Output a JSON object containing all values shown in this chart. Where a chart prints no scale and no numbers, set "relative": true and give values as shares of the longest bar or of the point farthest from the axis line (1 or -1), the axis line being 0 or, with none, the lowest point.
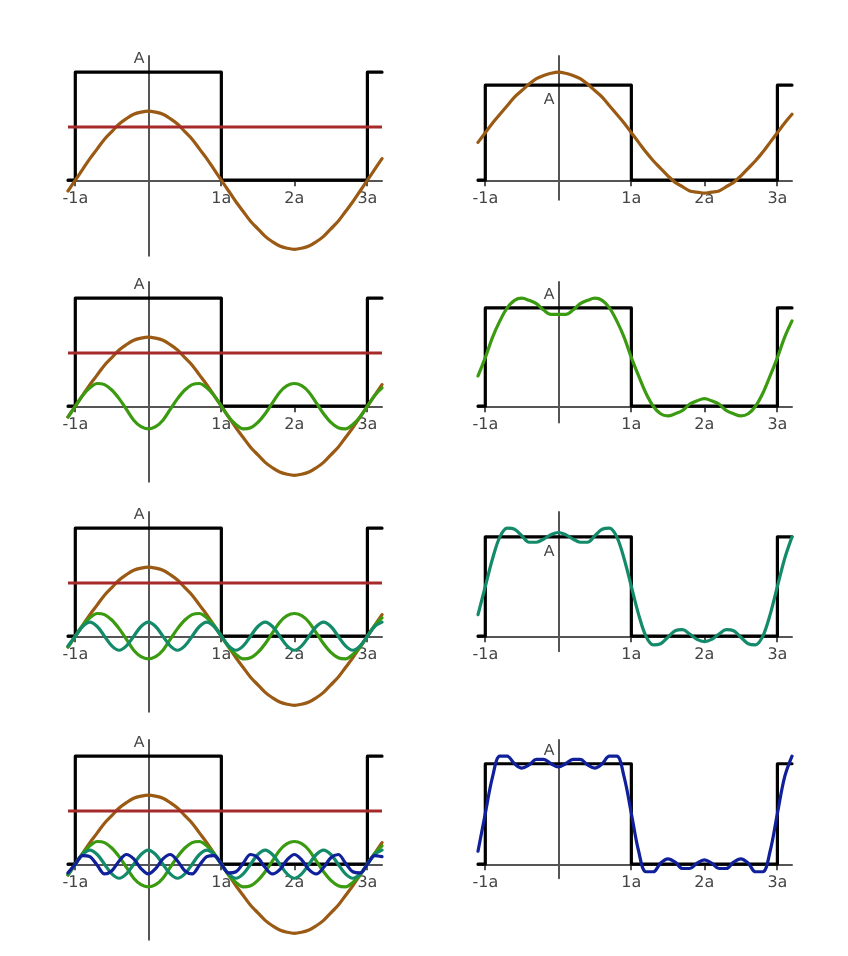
{
  "chart_data": [
    {
      "type": "line",
      "relative": true,
      "x": [
        -1.1,
        -1,
        -0.9,
        -0.8,
        -0.7,
        -0.6,
        -0.5,
        -0.4,
        -0.3,
        -0.2,
        -0.1,
        0,
        0.1,
        0.2,
        0.3,
        0.4,
        0.5,
        0.6,
        0.7,
        0.8,
        0.9,
        1,
        1.1,
        1.2,
        1.3,
        1.4,
        1.5,
        1.6,
        1.7,
        1.8,
        1.9,
        2,
        2.1,
        2.2,
        2.3,
        2.4,
        2.5,
        2.6,
        2.7,
        2.8,
        2.9,
        3,
        3.1,
        3.2
      ],
      "xlim": [
        -1.1,
        3.2
      ],
      "xticks": [
        {
          "value": -1,
          "label": "-1a"
        },
        {
          "value": 1,
          "label": "1a"
        },
        {
          "value": 2,
          "label": "2a"
        },
        {
          "value": 3,
          "label": "3a"
        }
      ],
      "annotations": [
        {
          "text": "A",
          "y": 1
        }
      ],
      "grid": false,
      "marker": "none",
      "line_style": "solid",
      "ref_lines": [
        {
          "axis": "y",
          "value": 0.5,
          "color": "#a52a2a"
        }
      ],
      "series": [
        {
          "color": "#000000",
          "x": [
            -1.1,
            -1,
            -1,
            1,
            1,
            3,
            3,
            3.2
          ],
          "values": [
            0,
            0,
            1,
            1,
            0,
            0,
            1,
            1
          ]
        },
        {
          "color": "#9a5a14",
          "values": [
            -0.1,
            0,
            0.1,
            0.2,
            0.29,
            0.38,
            0.45,
            0.52,
            0.57,
            0.61,
            0.63,
            0.64,
            0.63,
            0.61,
            0.57,
            0.52,
            0.45,
            0.38,
            0.29,
            0.2,
            0.1,
            0,
            -0.1,
            -0.2,
            -0.29,
            -0.38,
            -0.45,
            -0.52,
            -0.57,
            -0.61,
            -0.63,
            -0.64,
            -0.63,
            -0.61,
            -0.57,
            -0.52,
            -0.45,
            -0.38,
            -0.29,
            -0.2,
            -0.1,
            0,
            0.1,
            0.2
          ]
        }
      ]
    },
    {
      "type": "line",
      "relative": true,
      "x": [
        -1.1,
        -1,
        -0.9,
        -0.8,
        -0.7,
        -0.6,
        -0.5,
        -0.4,
        -0.3,
        -0.2,
        -0.1,
        0,
        0.1,
        0.2,
        0.3,
        0.4,
        0.5,
        0.6,
        0.7,
        0.8,
        0.9,
        1,
        1.1,
        1.2,
        1.3,
        1.4,
        1.5,
        1.6,
        1.7,
        1.8,
        1.9,
        2,
        2.1,
        2.2,
        2.3,
        2.4,
        2.5,
        2.6,
        2.7,
        2.8,
        2.9,
        3,
        3.1,
        3.2
      ],
      "xlim": [
        -1.1,
        3.2
      ],
      "xticks": [
        {
          "value": -1,
          "label": "-1a"
        },
        {
          "value": 1,
          "label": "1a"
        },
        {
          "value": 2,
          "label": "2a"
        },
        {
          "value": 3,
          "label": "3a"
        }
      ],
      "annotations": [
        {
          "text": "A",
          "y": 0.88
        }
      ],
      "grid": false,
      "marker": "none",
      "line_style": "solid",
      "series": [
        {
          "color": "#000000",
          "x": [
            -1.1,
            -1,
            -1,
            1,
            1,
            3,
            3,
            3.2
          ],
          "values": [
            0,
            0,
            0.88,
            0.88,
            0,
            0,
            0.88,
            0.88
          ]
        },
        {
          "color": "#9a5a14",
          "values": [
            0.35,
            0.44,
            0.53,
            0.61,
            0.69,
            0.77,
            0.83,
            0.89,
            0.94,
            0.97,
            0.99,
            1,
            0.99,
            0.97,
            0.94,
            0.89,
            0.83,
            0.77,
            0.69,
            0.61,
            0.53,
            0.44,
            0.35,
            0.26,
            0.18,
            0.11,
            0.04,
            -0.02,
            -0.06,
            -0.1,
            -0.11,
            -0.12,
            -0.11,
            -0.1,
            -0.06,
            -0.02,
            0.04,
            0.11,
            0.18,
            0.26,
            0.35,
            0.44,
            0.53,
            0.61
          ]
        }
      ]
    },
    {
      "type": "line",
      "relative": true,
      "x": [
        -1.1,
        -1,
        -0.9,
        -0.8,
        -0.7,
        -0.6,
        -0.5,
        -0.4,
        -0.3,
        -0.2,
        -0.1,
        0,
        0.1,
        0.2,
        0.3,
        0.4,
        0.5,
        0.6,
        0.7,
        0.8,
        0.9,
        1,
        1.1,
        1.2,
        1.3,
        1.4,
        1.5,
        1.6,
        1.7,
        1.8,
        1.9,
        2,
        2.1,
        2.2,
        2.3,
        2.4,
        2.5,
        2.6,
        2.7,
        2.8,
        2.9,
        3,
        3.1,
        3.2
      ],
      "xlim": [
        -1.1,
        3.2
      ],
      "xticks": [
        {
          "value": -1,
          "label": "-1a"
        },
        {
          "value": 1,
          "label": "1a"
        },
        {
          "value": 2,
          "label": "2a"
        },
        {
          "value": 3,
          "label": "3a"
        }
      ],
      "annotations": [
        {
          "text": "A",
          "y": 1
        }
      ],
      "grid": false,
      "marker": "none",
      "line_style": "solid",
      "ref_lines": [
        {
          "axis": "y",
          "value": 0.5,
          "color": "#a52a2a"
        }
      ],
      "series": [
        {
          "color": "#000000",
          "x": [
            -1.1,
            -1,
            -1,
            1,
            1,
            3,
            3,
            3.2
          ],
          "values": [
            0,
            0,
            1,
            1,
            0,
            0,
            1,
            1
          ]
        },
        {
          "color": "#9a5a14",
          "values": [
            -0.1,
            0,
            0.1,
            0.2,
            0.29,
            0.38,
            0.45,
            0.52,
            0.57,
            0.61,
            0.63,
            0.64,
            0.63,
            0.61,
            0.57,
            0.52,
            0.45,
            0.38,
            0.29,
            0.2,
            0.1,
            0,
            -0.1,
            -0.2,
            -0.29,
            -0.38,
            -0.45,
            -0.52,
            -0.57,
            -0.61,
            -0.63,
            -0.64,
            -0.63,
            -0.61,
            -0.57,
            -0.52,
            -0.45,
            -0.38,
            -0.29,
            -0.2,
            -0.1,
            0,
            0.1,
            0.2
          ]
        },
        {
          "color": "#3a9a10",
          "values": [
            -0.1,
            0,
            0.1,
            0.17,
            0.21,
            0.2,
            0.15,
            0.07,
            -0.03,
            -0.13,
            -0.19,
            -0.21,
            -0.19,
            -0.13,
            -0.03,
            0.07,
            0.15,
            0.2,
            0.21,
            0.17,
            0.1,
            0,
            -0.1,
            -0.17,
            -0.21,
            -0.2,
            -0.15,
            -0.07,
            0.03,
            0.13,
            0.19,
            0.21,
            0.19,
            0.13,
            0.03,
            -0.07,
            -0.15,
            -0.2,
            -0.21,
            -0.17,
            -0.1,
            0,
            0.1,
            0.17
          ]
        }
      ]
    },
    {
      "type": "line",
      "relative": true,
      "x": [
        -1.1,
        -1,
        -0.9,
        -0.8,
        -0.7,
        -0.6,
        -0.5,
        -0.4,
        -0.3,
        -0.2,
        -0.1,
        0,
        0.1,
        0.2,
        0.3,
        0.4,
        0.5,
        0.6,
        0.7,
        0.8,
        0.9,
        1,
        1.1,
        1.2,
        1.3,
        1.4,
        1.5,
        1.6,
        1.7,
        1.8,
        1.9,
        2,
        2.1,
        2.2,
        2.3,
        2.4,
        2.5,
        2.6,
        2.7,
        2.8,
        2.9,
        3,
        3.1,
        3.2
      ],
      "xlim": [
        -1.1,
        3.2
      ],
      "xticks": [
        {
          "value": -1,
          "label": "-1a"
        },
        {
          "value": 1,
          "label": "1a"
        },
        {
          "value": 2,
          "label": "2a"
        },
        {
          "value": 3,
          "label": "3a"
        }
      ],
      "annotations": [
        {
          "text": "A",
          "y": 0.91
        }
      ],
      "grid": false,
      "marker": "none",
      "line_style": "solid",
      "series": [
        {
          "color": "#000000",
          "x": [
            -1.1,
            -1,
            -1,
            1,
            1,
            3,
            3,
            3.2
          ],
          "values": [
            0,
            0,
            0.91,
            0.91,
            0,
            0,
            0.91,
            0.91
          ]
        },
        {
          "color": "#3a9a10",
          "values": [
            0.28,
            0.45,
            0.64,
            0.79,
            0.91,
            0.98,
            1,
            0.98,
            0.95,
            0.89,
            0.85,
            0.85,
            0.85,
            0.89,
            0.95,
            0.98,
            1,
            0.98,
            0.91,
            0.79,
            0.64,
            0.45,
            0.28,
            0.12,
            0,
            -0.07,
            -0.09,
            -0.07,
            -0.04,
            0.02,
            0.05,
            0.07,
            0.05,
            0.02,
            -0.04,
            -0.07,
            -0.09,
            -0.07,
            0,
            0.12,
            0.28,
            0.45,
            0.64,
            0.79
          ]
        }
      ]
    },
    {
      "type": "line",
      "relative": true,
      "x": [
        -1.1,
        -1,
        -0.9,
        -0.8,
        -0.7,
        -0.6,
        -0.5,
        -0.4,
        -0.3,
        -0.2,
        -0.1,
        0,
        0.1,
        0.2,
        0.3,
        0.4,
        0.5,
        0.6,
        0.7,
        0.8,
        0.9,
        1,
        1.1,
        1.2,
        1.3,
        1.4,
        1.5,
        1.6,
        1.7,
        1.8,
        1.9,
        2,
        2.1,
        2.2,
        2.3,
        2.4,
        2.5,
        2.6,
        2.7,
        2.8,
        2.9,
        3,
        3.1,
        3.2
      ],
      "xlim": [
        -1.1,
        3.2
      ],
      "xticks": [
        {
          "value": -1,
          "label": "-1a"
        },
        {
          "value": 1,
          "label": "1a"
        },
        {
          "value": 2,
          "label": "2a"
        },
        {
          "value": 3,
          "label": "3a"
        }
      ],
      "annotations": [
        {
          "text": "A",
          "y": 1
        }
      ],
      "grid": false,
      "marker": "none",
      "line_style": "solid",
      "ref_lines": [
        {
          "axis": "y",
          "value": 0.5,
          "color": "#a52a2a"
        }
      ],
      "series": [
        {
          "color": "#000000",
          "x": [
            -1.1,
            -1,
            -1,
            1,
            1,
            3,
            3,
            3.2
          ],
          "values": [
            0,
            0,
            1,
            1,
            0,
            0,
            1,
            1
          ]
        },
        {
          "color": "#9a5a14",
          "values": [
            -0.1,
            0,
            0.1,
            0.2,
            0.29,
            0.38,
            0.45,
            0.52,
            0.57,
            0.61,
            0.63,
            0.64,
            0.63,
            0.61,
            0.57,
            0.52,
            0.45,
            0.38,
            0.29,
            0.2,
            0.1,
            0,
            -0.1,
            -0.2,
            -0.29,
            -0.38,
            -0.45,
            -0.52,
            -0.57,
            -0.61,
            -0.63,
            -0.64,
            -0.63,
            -0.61,
            -0.57,
            -0.52,
            -0.45,
            -0.38,
            -0.29,
            -0.2,
            -0.1,
            0,
            0.1,
            0.2
          ]
        },
        {
          "color": "#3a9a10",
          "values": [
            -0.1,
            0,
            0.1,
            0.17,
            0.21,
            0.2,
            0.15,
            0.07,
            -0.03,
            -0.13,
            -0.19,
            -0.21,
            -0.19,
            -0.13,
            -0.03,
            0.07,
            0.15,
            0.2,
            0.21,
            0.17,
            0.1,
            0,
            -0.1,
            -0.17,
            -0.21,
            -0.2,
            -0.15,
            -0.07,
            0.03,
            0.13,
            0.19,
            0.21,
            0.19,
            0.13,
            0.03,
            -0.07,
            -0.15,
            -0.2,
            -0.21,
            -0.17,
            -0.1,
            0,
            0.1,
            0.17
          ]
        },
        {
          "color": "#138a6a",
          "values": [
            -0.09,
            0,
            0.09,
            0.13,
            0.09,
            0,
            -0.09,
            -0.13,
            -0.09,
            0,
            0.09,
            0.13,
            0.09,
            0,
            -0.09,
            -0.13,
            -0.09,
            0,
            0.09,
            0.13,
            0.09,
            0,
            -0.09,
            -0.13,
            -0.09,
            0,
            0.09,
            0.13,
            0.09,
            0,
            -0.09,
            -0.13,
            -0.09,
            0,
            0.09,
            0.13,
            0.09,
            0,
            -0.09,
            -0.13,
            -0.09,
            0,
            0.09,
            0.13
          ]
        }
      ]
    },
    {
      "type": "line",
      "relative": true,
      "x": [
        -1.1,
        -1,
        -0.9,
        -0.8,
        -0.7,
        -0.6,
        -0.5,
        -0.4,
        -0.3,
        -0.2,
        -0.1,
        0,
        0.1,
        0.2,
        0.3,
        0.4,
        0.5,
        0.6,
        0.7,
        0.8,
        0.9,
        1,
        1.1,
        1.2,
        1.3,
        1.4,
        1.5,
        1.6,
        1.7,
        1.8,
        1.9,
        2,
        2.1,
        2.2,
        2.3,
        2.4,
        2.5,
        2.6,
        2.7,
        2.8,
        2.9,
        3,
        3.1,
        3.2
      ],
      "xlim": [
        -1.1,
        3.2
      ],
      "xticks": [
        {
          "value": -1,
          "label": "-1a"
        },
        {
          "value": 1,
          "label": "1a"
        },
        {
          "value": 2,
          "label": "2a"
        },
        {
          "value": 3,
          "label": "3a"
        }
      ],
      "annotations": [
        {
          "text": "A",
          "y": 0.92
        }
      ],
      "grid": false,
      "marker": "none",
      "line_style": "solid",
      "series": [
        {
          "color": "#000000",
          "x": [
            -1.1,
            -1,
            -1,
            1,
            1,
            3,
            3,
            3.2
          ],
          "values": [
            0,
            0,
            0.92,
            0.92,
            0,
            0,
            0.92,
            0.92
          ]
        },
        {
          "color": "#138a6a",
          "values": [
            0.2,
            0.46,
            0.72,
            0.92,
            1,
            0.99,
            0.93,
            0.87,
            0.87,
            0.9,
            0.94,
            0.96,
            0.94,
            0.9,
            0.87,
            0.87,
            0.93,
            0.99,
            1,
            0.92,
            0.72,
            0.46,
            0.2,
            0,
            -0.08,
            -0.07,
            -0.01,
            0.05,
            0.06,
            0.02,
            -0.03,
            -0.05,
            -0.03,
            0.02,
            0.06,
            0.05,
            -0.01,
            -0.07,
            -0.08,
            0,
            0.2,
            0.46,
            0.72,
            0.92
          ]
        }
      ]
    },
    {
      "type": "line",
      "relative": true,
      "x": [
        -1.1,
        -1,
        -0.9,
        -0.8,
        -0.7,
        -0.6,
        -0.5,
        -0.4,
        -0.3,
        -0.2,
        -0.1,
        0,
        0.1,
        0.2,
        0.3,
        0.4,
        0.5,
        0.6,
        0.7,
        0.8,
        0.9,
        1,
        1.1,
        1.2,
        1.3,
        1.4,
        1.5,
        1.6,
        1.7,
        1.8,
        1.9,
        2,
        2.1,
        2.2,
        2.3,
        2.4,
        2.5,
        2.6,
        2.7,
        2.8,
        2.9,
        3,
        3.1,
        3.2
      ],
      "xlim": [
        -1.1,
        3.2
      ],
      "xticks": [
        {
          "value": -1,
          "label": "-1a"
        },
        {
          "value": 1,
          "label": "1a"
        },
        {
          "value": 2,
          "label": "2a"
        },
        {
          "value": 3,
          "label": "3a"
        }
      ],
      "annotations": [
        {
          "text": "A",
          "y": 1
        }
      ],
      "grid": false,
      "marker": "none",
      "line_style": "solid",
      "ref_lines": [
        {
          "axis": "y",
          "value": 0.5,
          "color": "#a52a2a"
        }
      ],
      "series": [
        {
          "color": "#000000",
          "x": [
            -1.1,
            -1,
            -1,
            1,
            1,
            3,
            3,
            3.2
          ],
          "values": [
            0,
            0,
            1,
            1,
            0,
            0,
            1,
            1
          ]
        },
        {
          "color": "#9a5a14",
          "values": [
            -0.1,
            0,
            0.1,
            0.2,
            0.29,
            0.38,
            0.45,
            0.52,
            0.57,
            0.61,
            0.63,
            0.64,
            0.63,
            0.61,
            0.57,
            0.52,
            0.45,
            0.38,
            0.29,
            0.2,
            0.1,
            0,
            -0.1,
            -0.2,
            -0.29,
            -0.38,
            -0.45,
            -0.52,
            -0.57,
            -0.61,
            -0.63,
            -0.64,
            -0.63,
            -0.61,
            -0.57,
            -0.52,
            -0.45,
            -0.38,
            -0.29,
            -0.2,
            -0.1,
            0,
            0.1,
            0.2
          ]
        },
        {
          "color": "#3a9a10",
          "values": [
            -0.1,
            0,
            0.1,
            0.17,
            0.21,
            0.2,
            0.15,
            0.07,
            -0.03,
            -0.13,
            -0.19,
            -0.21,
            -0.19,
            -0.13,
            -0.03,
            0.07,
            0.15,
            0.2,
            0.21,
            0.17,
            0.1,
            0,
            -0.1,
            -0.17,
            -0.21,
            -0.2,
            -0.15,
            -0.07,
            0.03,
            0.13,
            0.19,
            0.21,
            0.19,
            0.13,
            0.03,
            -0.07,
            -0.15,
            -0.2,
            -0.21,
            -0.17,
            -0.1,
            0,
            0.1,
            0.17
          ]
        },
        {
          "color": "#138a6a",
          "values": [
            -0.09,
            0,
            0.09,
            0.13,
            0.09,
            0,
            -0.09,
            -0.13,
            -0.09,
            0,
            0.09,
            0.13,
            0.09,
            0,
            -0.09,
            -0.13,
            -0.09,
            0,
            0.09,
            0.13,
            0.09,
            0,
            -0.09,
            -0.13,
            -0.09,
            0,
            0.09,
            0.13,
            0.09,
            0,
            -0.09,
            -0.13,
            -0.09,
            0,
            0.09,
            0.13,
            0.09,
            0,
            -0.09,
            -0.13,
            -0.09,
            0,
            0.09,
            0.13
          ]
        },
        {
          "color": "#10209a",
          "values": [
            -0.08,
            0,
            0.08,
            0.07,
            -0.01,
            -0.09,
            -0.06,
            0.03,
            0.09,
            0.05,
            -0.04,
            -0.09,
            -0.04,
            0.05,
            0.09,
            0.03,
            -0.06,
            -0.09,
            -0.01,
            0.07,
            0.08,
            0,
            -0.08,
            -0.07,
            0.01,
            0.09,
            0.06,
            -0.03,
            -0.09,
            -0.05,
            0.04,
            0.09,
            0.04,
            -0.05,
            -0.09,
            -0.03,
            0.06,
            0.09,
            0.01,
            -0.07,
            -0.08,
            0,
            0.08,
            0.07
          ]
        }
      ]
    },
    {
      "type": "line",
      "relative": true,
      "x": [
        -1.1,
        -1,
        -0.9,
        -0.8,
        -0.7,
        -0.6,
        -0.5,
        -0.4,
        -0.3,
        -0.2,
        -0.1,
        0,
        0.1,
        0.2,
        0.3,
        0.4,
        0.5,
        0.6,
        0.7,
        0.8,
        0.9,
        1,
        1.1,
        1.2,
        1.3,
        1.4,
        1.5,
        1.6,
        1.7,
        1.8,
        1.9,
        2,
        2.1,
        2.2,
        2.3,
        2.4,
        2.5,
        2.6,
        2.7,
        2.8,
        2.9,
        3,
        3.1,
        3.2
      ],
      "xlim": [
        -1.1,
        3.2
      ],
      "xticks": [
        {
          "value": -1,
          "label": "-1a"
        },
        {
          "value": 1,
          "label": "1a"
        },
        {
          "value": 2,
          "label": "2a"
        },
        {
          "value": 3,
          "label": "3a"
        }
      ],
      "annotations": [
        {
          "text": "A",
          "y": 0.93
        }
      ],
      "grid": false,
      "marker": "none",
      "line_style": "solid",
      "series": [
        {
          "color": "#000000",
          "x": [
            -1.1,
            -1,
            -1,
            1,
            1,
            3,
            3,
            3.2
          ],
          "values": [
            0,
            0,
            0.93,
            0.93,
            0,
            0,
            0.93,
            0.93
          ]
        },
        {
          "color": "#10209a",
          "values": [
            0.12,
            0.47,
            0.81,
            1,
            1,
            0.93,
            0.89,
            0.92,
            0.97,
            0.97,
            0.93,
            0.9,
            0.93,
            0.97,
            0.97,
            0.92,
            0.89,
            0.93,
            1,
            1,
            0.81,
            0.47,
            0.12,
            -0.07,
            -0.07,
            0.01,
            0.05,
            0.02,
            -0.04,
            -0.04,
            0.01,
            0.04,
            0.01,
            -0.04,
            -0.04,
            0.02,
            0.05,
            0.01,
            -0.07,
            -0.07,
            0.12,
            0.47,
            0.81,
            1
          ]
        }
      ]
    }
  ]
}
